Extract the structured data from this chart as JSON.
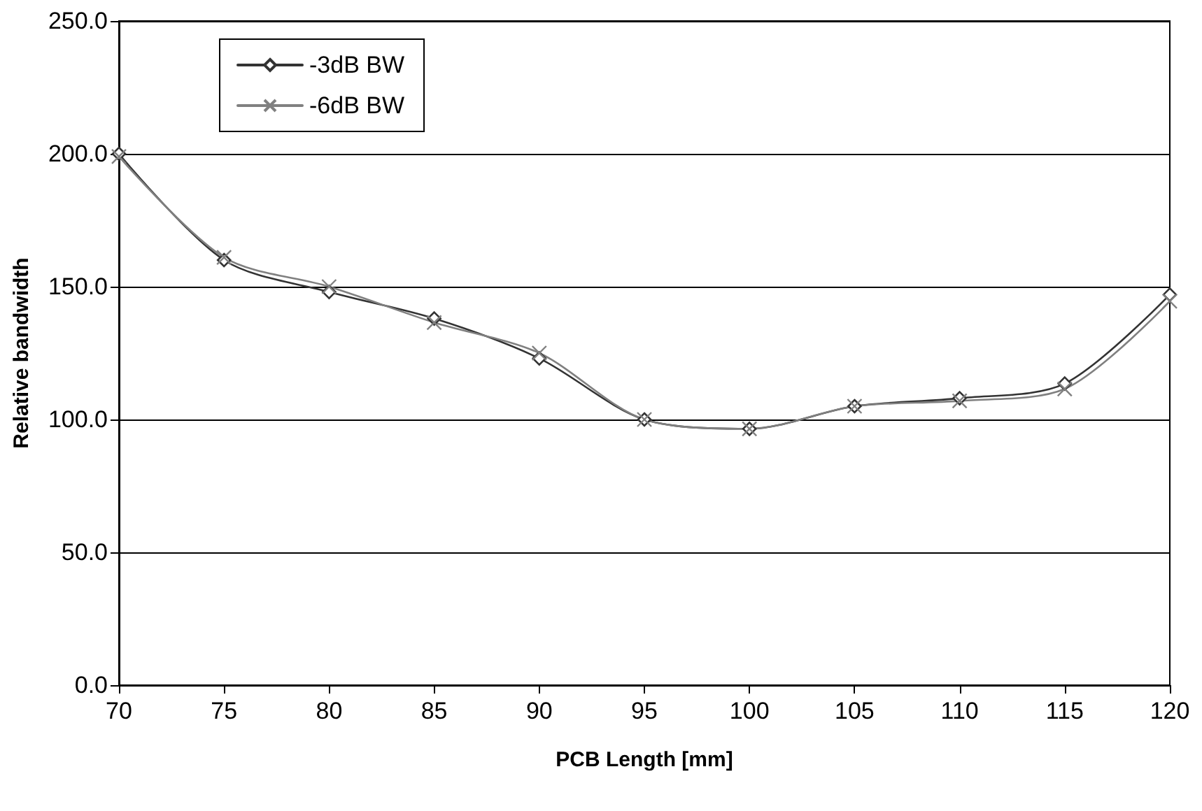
{
  "chart_data": {
    "type": "line",
    "xlabel": "PCB Length [mm]",
    "ylabel": "Relative bandwidth",
    "x": [
      70,
      75,
      80,
      85,
      90,
      95,
      100,
      105,
      110,
      115,
      120
    ],
    "series": [
      {
        "name": "-3dB BW",
        "color": "#333333",
        "marker": "diamond",
        "values": [
          200,
          160,
          148,
          138,
          123,
          100,
          96.5,
          105,
          108,
          113.5,
          147
        ]
      },
      {
        "name": "-6dB BW",
        "color": "#808080",
        "marker": "cross",
        "values": [
          199,
          161,
          150,
          136.5,
          125,
          100,
          96.5,
          105,
          107,
          111.5,
          144.5
        ]
      }
    ],
    "xlim": [
      70,
      120
    ],
    "xticks": [
      70,
      75,
      80,
      85,
      90,
      95,
      100,
      105,
      110,
      115,
      120
    ],
    "ylim": [
      0,
      250
    ],
    "yticks": [
      {
        "value": 0,
        "label": "0.0"
      },
      {
        "value": 50,
        "label": "50.0"
      },
      {
        "value": 100,
        "label": "100.0"
      },
      {
        "value": 150,
        "label": "150.0"
      },
      {
        "value": 200,
        "label": "200.0"
      },
      {
        "value": 250,
        "label": "250.0"
      }
    ],
    "grid": "y",
    "legend": "top left",
    "line_style": "solid"
  }
}
